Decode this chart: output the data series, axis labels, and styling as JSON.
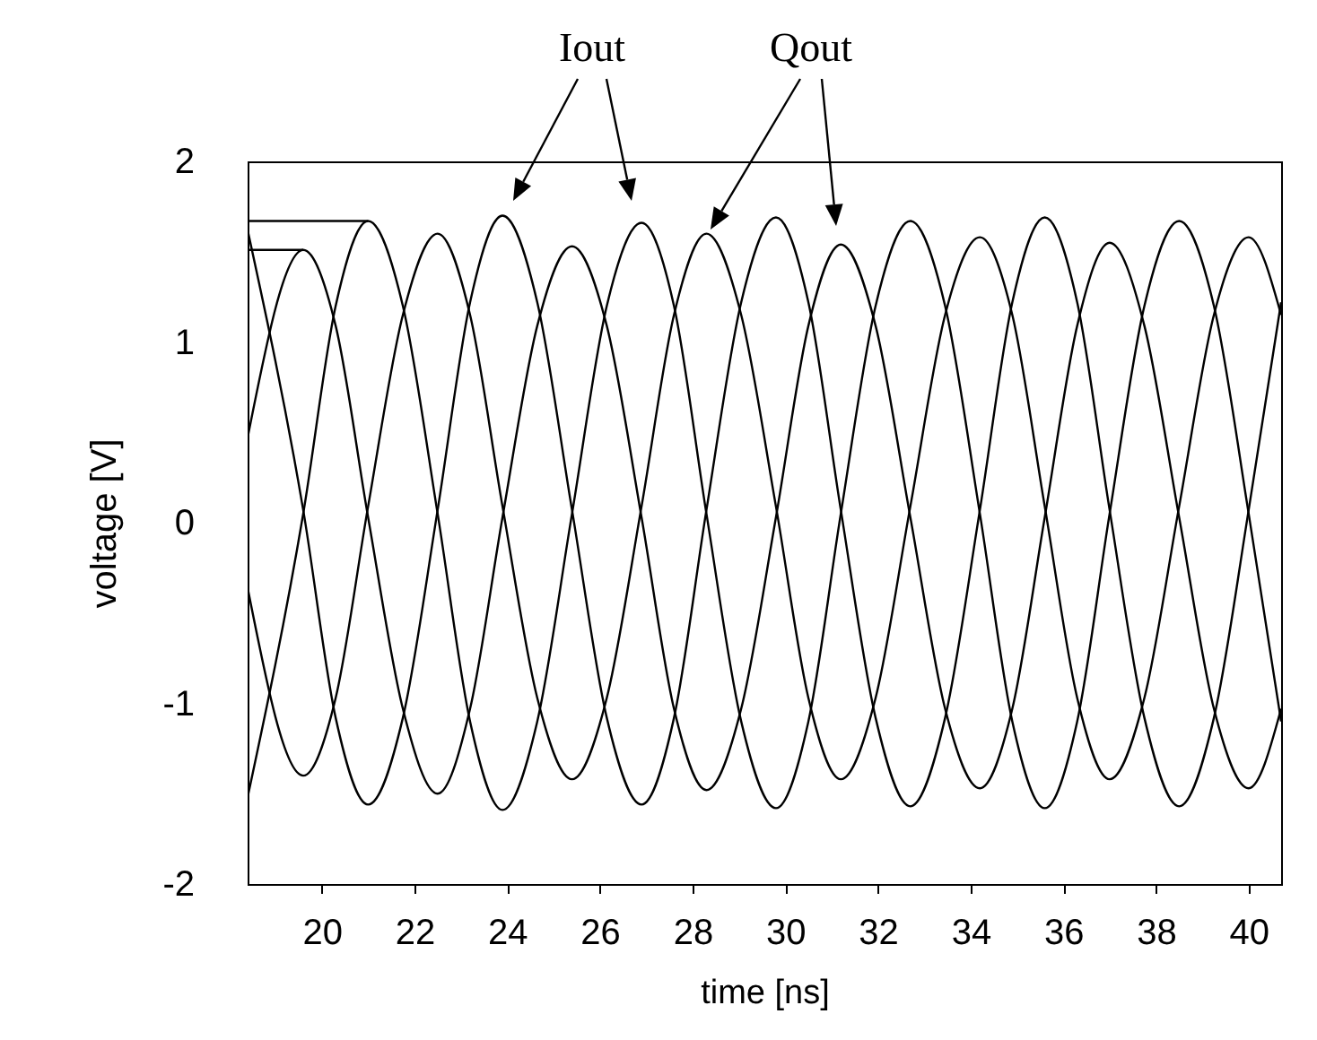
{
  "chart_data": {
    "type": "line",
    "xlabel": "time [ns]",
    "ylabel": "voltage [V]",
    "grid": false,
    "xlim": [
      18.4,
      40.7
    ],
    "xticks": [
      20,
      22,
      24,
      26,
      28,
      30,
      32,
      34,
      36,
      38,
      40
    ],
    "ylim": [
      -2,
      2
    ],
    "yticks": [
      -2,
      -1,
      0,
      1,
      2
    ],
    "annotations": [
      "Iout",
      "Qout"
    ],
    "x": [
      18.4,
      19.6,
      20.3,
      21.0,
      21.75,
      22.5,
      23.2,
      23.9,
      24.65,
      25.4,
      26.15,
      26.9,
      27.6,
      28.3,
      29.05,
      29.8,
      30.5,
      31.2,
      31.95,
      32.7,
      33.45,
      34.2,
      34.9,
      35.6,
      36.3,
      37.0,
      37.75,
      38.5,
      39.25,
      40.0,
      40.7
    ],
    "series": [
      {
        "color": "#000000",
        "values": [
          0.47,
          1.51,
          1.09,
          0.03,
          -1.03,
          -1.5,
          -1.03,
          0.03,
          1.09,
          1.53,
          1.09,
          0.03,
          -1.03,
          -1.48,
          -1.03,
          0.03,
          1.09,
          1.54,
          1.09,
          0.03,
          -1.03,
          -1.47,
          -1.03,
          0.03,
          1.09,
          1.55,
          1.09,
          0.03,
          -1.03,
          -1.47,
          -1.03
        ]
      },
      {
        "color": "#000000",
        "values": [
          -1.52,
          0.05,
          1.2,
          1.67,
          1.2,
          0.05,
          -1.1,
          -1.59,
          -1.1,
          0.05,
          1.2,
          1.66,
          1.2,
          0.05,
          -1.1,
          -1.58,
          -1.1,
          0.05,
          1.2,
          1.67,
          1.2,
          0.05,
          -1.1,
          -1.58,
          -1.1,
          0.05,
          1.2,
          1.67,
          1.2,
          0.05,
          -1.1
        ]
      },
      {
        "color": "#000000",
        "values": [
          -0.36,
          -1.4,
          -0.97,
          0.09,
          1.15,
          1.6,
          1.15,
          0.09,
          -0.97,
          -1.42,
          -0.97,
          0.09,
          1.15,
          1.6,
          1.15,
          0.09,
          -0.97,
          -1.42,
          -0.97,
          0.09,
          1.15,
          1.58,
          1.15,
          0.09,
          -0.97,
          -1.42,
          -0.97,
          0.09,
          1.15,
          1.58,
          1.15
        ]
      },
      {
        "color": "#000000",
        "values": [
          1.62,
          0.07,
          -1.08,
          -1.56,
          -1.08,
          0.07,
          1.22,
          1.7,
          1.22,
          0.07,
          -1.08,
          -1.56,
          -1.08,
          0.07,
          1.22,
          1.69,
          1.22,
          0.07,
          -1.08,
          -1.57,
          -1.08,
          0.07,
          1.22,
          1.69,
          1.22,
          0.07,
          -1.08,
          -1.57,
          -1.08,
          0.07,
          1.22
        ]
      },
      {
        "type": "line",
        "color": "#000000",
        "x": [
          18.4,
          21.0
        ],
        "values": [
          1.67,
          1.67
        ]
      },
      {
        "type": "line",
        "color": "#000000",
        "x": [
          18.4,
          19.6
        ],
        "values": [
          1.51,
          1.51
        ]
      }
    ]
  }
}
